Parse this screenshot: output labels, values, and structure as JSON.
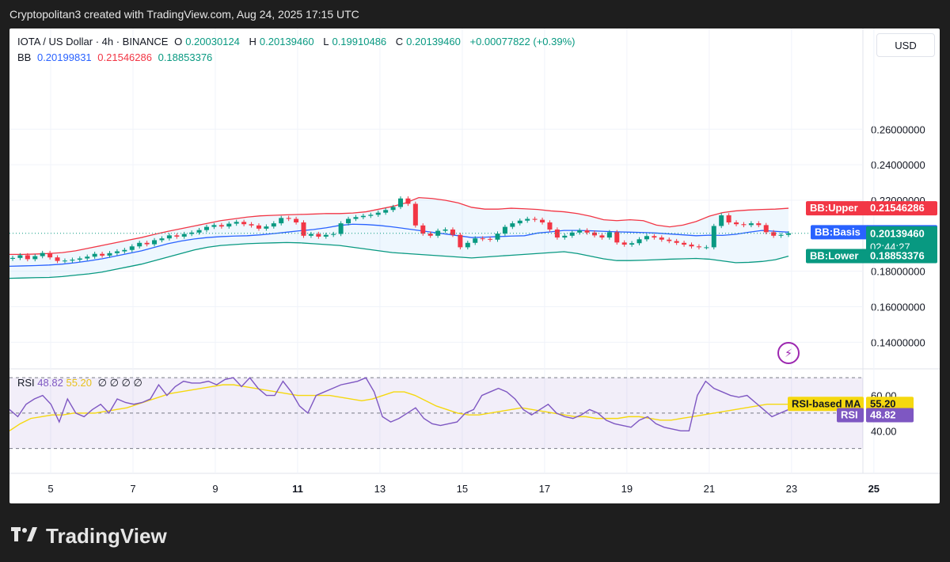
{
  "header": {
    "credit": "Cryptopolitan3 created with TradingView.com, Aug 24, 2025 17:15 UTC"
  },
  "legend": {
    "symbol": "IOTA / US Dollar · 4h · BINANCE",
    "open_label": "O",
    "open": "0.20030124",
    "high_label": "H",
    "high": "0.20139460",
    "low_label": "L",
    "low": "0.19910486",
    "close_label": "C",
    "close": "0.20139460",
    "change": "+0.00077822 (+0.39%)",
    "bb_label": "BB",
    "bb_basis": "0.20199831",
    "bb_upper": "0.21546286",
    "bb_lower": "0.18853376"
  },
  "currency_button": "USD",
  "rsi_legend": {
    "label": "RSI",
    "rsi": "48.82",
    "ma": "55.20",
    "extras": "∅ ∅ ∅ ∅"
  },
  "brand": "TradingView",
  "colors": {
    "up": "#089981",
    "down": "#f23645",
    "basis": "#2962ff",
    "upper": "#f23645",
    "lower": "#089981",
    "rsi": "#7e57c2",
    "rsi_ma": "#f5d80f"
  },
  "chart_data": [
    {
      "type": "candlestick",
      "title": "IOTA / US Dollar · 4h · BINANCE",
      "ylim": [
        0.125,
        0.29
      ],
      "y_ticks": [
        "0.26000000",
        "0.24000000",
        "0.22000000",
        "0.18000000",
        "0.16000000",
        "0.14000000"
      ],
      "x_ticks": [
        "5",
        "7",
        "9",
        "11",
        "13",
        "15",
        "17",
        "19",
        "21",
        "23",
        "25"
      ],
      "x_tick_days": [
        5,
        7,
        9,
        11,
        13,
        15,
        17,
        19,
        21,
        23,
        25
      ],
      "x_range_days": [
        4.0,
        26.6
      ],
      "grid": true,
      "current_price": "0.20139460",
      "countdown": "02:44:27",
      "labels": {
        "upper": "BB:Upper",
        "basis": "BB:Basis",
        "lower": "BB:Lower"
      },
      "label_values": {
        "upper": "0.21546286",
        "basis": "0.20199831",
        "lower": "0.18853376"
      },
      "series": [
        {
          "name": "close",
          "values": [
            0.1875,
            0.189,
            0.1868,
            0.1885,
            0.1903,
            0.1878,
            0.1858,
            0.186,
            0.1865,
            0.1872,
            0.1882,
            0.1898,
            0.1888,
            0.1902,
            0.1912,
            0.192,
            0.194,
            0.196,
            0.1952,
            0.1975,
            0.1985,
            0.2002,
            0.1995,
            0.201,
            0.2018,
            0.2032,
            0.205,
            0.206,
            0.2052,
            0.2068,
            0.2078,
            0.2065,
            0.2058,
            0.204,
            0.2052,
            0.207,
            0.21,
            0.2095,
            0.2075,
            0.2,
            0.201,
            0.1995,
            0.2005,
            0.201,
            0.207,
            0.2095,
            0.2105,
            0.2112,
            0.2118,
            0.213,
            0.2145,
            0.2162,
            0.221,
            0.218,
            0.2058,
            0.2012,
            0.2,
            0.2028,
            0.2035,
            0.2005,
            0.1935,
            0.196,
            0.1985,
            0.1982,
            0.1978,
            0.2012,
            0.205,
            0.207,
            0.2085,
            0.2095,
            0.209,
            0.2075,
            0.2035,
            0.199,
            0.2,
            0.2018,
            0.203,
            0.2018,
            0.2002,
            0.199,
            0.202,
            0.1962,
            0.195,
            0.1958,
            0.198,
            0.1998,
            0.199,
            0.1978,
            0.197,
            0.196,
            0.195,
            0.194,
            0.1935,
            0.1935,
            0.2055,
            0.2115,
            0.2075,
            0.2065,
            0.206,
            0.207,
            0.206,
            0.202,
            0.2,
            0.2005,
            0.2014
          ]
        },
        {
          "name": "bb_upper",
          "values": [
            0.1895,
            0.1895,
            0.1897,
            0.19,
            0.1905,
            0.1915,
            0.193,
            0.1945,
            0.196,
            0.1975,
            0.199,
            0.2008,
            0.2025,
            0.204,
            0.2055,
            0.207,
            0.2085,
            0.2095,
            0.2105,
            0.2112,
            0.2115,
            0.2118,
            0.212,
            0.2122,
            0.2125,
            0.2125,
            0.2128,
            0.2135,
            0.215,
            0.2165,
            0.2185,
            0.2215,
            0.221,
            0.22,
            0.2185,
            0.216,
            0.215,
            0.215,
            0.2155,
            0.2152,
            0.2148,
            0.214,
            0.2135,
            0.2125,
            0.211,
            0.209,
            0.2085,
            0.209,
            0.2085,
            0.206,
            0.205,
            0.206,
            0.208,
            0.211,
            0.213,
            0.214,
            0.2145,
            0.2148,
            0.215,
            0.2155
          ]
        },
        {
          "name": "bb_basis",
          "values": [
            0.1828,
            0.183,
            0.1832,
            0.1835,
            0.184,
            0.1848,
            0.1858,
            0.187,
            0.1885,
            0.19,
            0.1915,
            0.1935,
            0.1955,
            0.197,
            0.1982,
            0.199,
            0.1995,
            0.1998,
            0.2,
            0.2005,
            0.2012,
            0.202,
            0.2028,
            0.2035,
            0.2045,
            0.2058,
            0.2065,
            0.2063,
            0.2058,
            0.205,
            0.204,
            0.203,
            0.202,
            0.201,
            0.2,
            0.199,
            0.1992,
            0.1995,
            0.1998,
            0.2,
            0.2015,
            0.2022,
            0.203,
            0.203,
            0.2028,
            0.2025,
            0.2022,
            0.202,
            0.2018,
            0.2015,
            0.201,
            0.2005,
            0.2,
            0.2003,
            0.2002,
            0.2008,
            0.202,
            0.203,
            0.2025,
            0.202
          ]
        },
        {
          "name": "bb_lower",
          "values": [
            0.176,
            0.1762,
            0.1764,
            0.1765,
            0.177,
            0.1778,
            0.1785,
            0.1795,
            0.181,
            0.1825,
            0.184,
            0.186,
            0.188,
            0.19,
            0.192,
            0.1935,
            0.1945,
            0.195,
            0.1955,
            0.1958,
            0.196,
            0.1962,
            0.196,
            0.1955,
            0.195,
            0.1945,
            0.1935,
            0.1925,
            0.1915,
            0.1905,
            0.19,
            0.1895,
            0.189,
            0.1885,
            0.188,
            0.1875,
            0.188,
            0.1885,
            0.189,
            0.1895,
            0.19,
            0.1905,
            0.191,
            0.19,
            0.1885,
            0.187,
            0.186,
            0.186,
            0.1862,
            0.1865,
            0.1868,
            0.187,
            0.1872,
            0.1868,
            0.1858,
            0.1848,
            0.185,
            0.1855,
            0.1865,
            0.1885
          ]
        }
      ]
    },
    {
      "type": "line",
      "title": "RSI",
      "ylim": [
        20,
        75
      ],
      "y_ticks": [
        "60.00",
        "40.00"
      ],
      "bands": [
        70,
        50,
        30
      ],
      "labels": {
        "ma": "RSI-based MA",
        "rsi": "RSI"
      },
      "label_values": {
        "ma": "55.20",
        "rsi": "48.82"
      },
      "series": [
        {
          "name": "RSI",
          "values": [
            52,
            48,
            55,
            58,
            60,
            55,
            45,
            58,
            50,
            48,
            52,
            55,
            50,
            58,
            56,
            55,
            56,
            58,
            66,
            60,
            65,
            68,
            67,
            67,
            68,
            66,
            69,
            70,
            65,
            70,
            64,
            60,
            60,
            68,
            62,
            54,
            50,
            60,
            62,
            64,
            66,
            67,
            68,
            70,
            62,
            48,
            45,
            47,
            50,
            53,
            47,
            44,
            43,
            44,
            45,
            50,
            52,
            60,
            62,
            64,
            62,
            58,
            52,
            49,
            52,
            55,
            50,
            48,
            47,
            49,
            52,
            50,
            46,
            44,
            43,
            42,
            46,
            48,
            44,
            42,
            41,
            40,
            40,
            60,
            68,
            64,
            62,
            60,
            59,
            60,
            56,
            52,
            48,
            50,
            52
          ]
        },
        {
          "name": "RSI-based MA",
          "values": [
            40,
            44,
            47,
            48,
            49,
            49,
            50,
            50,
            50,
            51,
            52,
            53,
            55,
            57,
            59,
            61,
            62,
            63,
            64,
            65,
            66,
            66,
            65,
            64,
            63,
            62,
            61,
            60,
            60,
            60,
            60,
            59,
            58,
            57,
            58,
            60,
            62,
            62,
            60,
            57,
            54,
            52,
            50,
            49,
            49,
            50,
            51,
            52,
            53,
            52,
            51,
            50,
            49,
            48,
            48,
            47,
            47,
            47,
            48,
            48,
            47,
            46,
            46,
            47,
            48,
            49,
            50,
            51,
            52,
            53,
            54,
            55,
            55,
            55
          ]
        }
      ]
    }
  ]
}
